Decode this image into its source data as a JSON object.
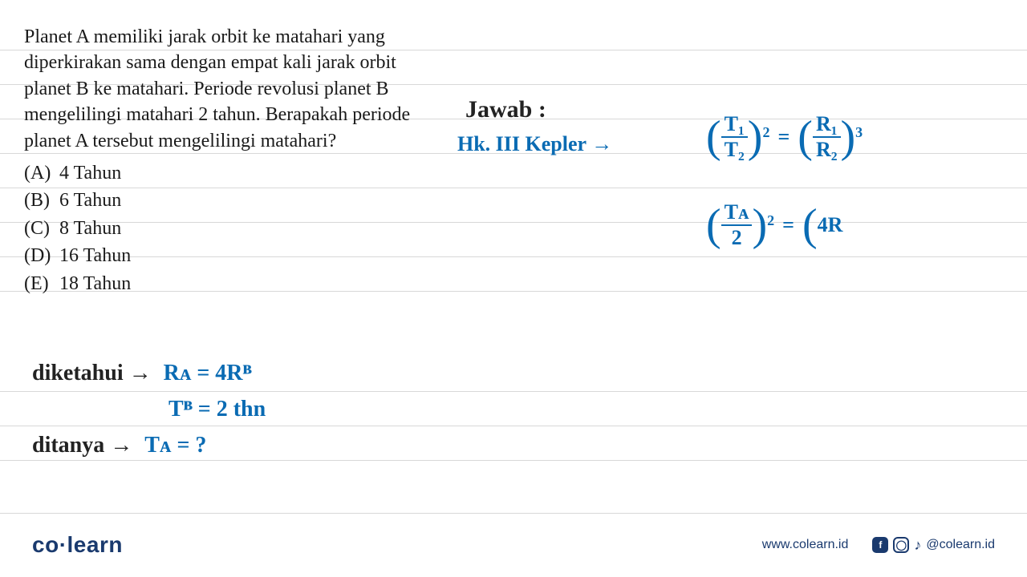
{
  "question": {
    "text": "Planet A memiliki jarak orbit ke matahari yang diperkirakan sama dengan empat kali jarak orbit planet B ke matahari. Periode revolusi planet B mengelilingi matahari 2 tahun. Berapakah periode planet A tersebut mengelilingi matahari?",
    "options": [
      {
        "label": "(A)",
        "text": "4 Tahun"
      },
      {
        "label": "(B)",
        "text": "6 Tahun"
      },
      {
        "label": "(C)",
        "text": "8 Tahun"
      },
      {
        "label": "(D)",
        "text": "16 Tahun"
      },
      {
        "label": "(E)",
        "text": "18 Tahun"
      }
    ],
    "fontsize": 24,
    "color": "#1a1a1a"
  },
  "handwriting": {
    "color_ink": "#0a6bb3",
    "color_black": "#222222",
    "jawab": "Jawab :",
    "kepler": "Hk. III Kepler  →",
    "eq1": {
      "lparen": "(",
      "num1": "T₁",
      "den1": "T₂",
      "rparen": ")",
      "pow1": "2",
      "eq": "=",
      "num2": "R₁",
      "den2": "R₂",
      "pow2": "3"
    },
    "eq2": {
      "num1": "Tᴀ",
      "den1": "2",
      "pow1": "2",
      "eq": "=",
      "rhs": "4R"
    },
    "diket_label": "diketahui →",
    "diket_l1": "Rᴀ = 4Rᴮ",
    "diket_l2": "Tᴮ = 2 thn",
    "ditanya_label": "ditanya →",
    "ditanya_val": "Tᴀ = ?"
  },
  "ruled": {
    "color": "#d8d8d8",
    "positions": [
      62,
      105,
      148,
      191,
      234,
      277,
      320,
      363,
      488,
      531,
      574,
      640
    ]
  },
  "footer": {
    "logo_a": "co",
    "logo_dot": "·",
    "logo_b": "learn",
    "url": "www.colearn.id",
    "handle": "@colearn.id",
    "brand_color": "#1a3a6e"
  }
}
